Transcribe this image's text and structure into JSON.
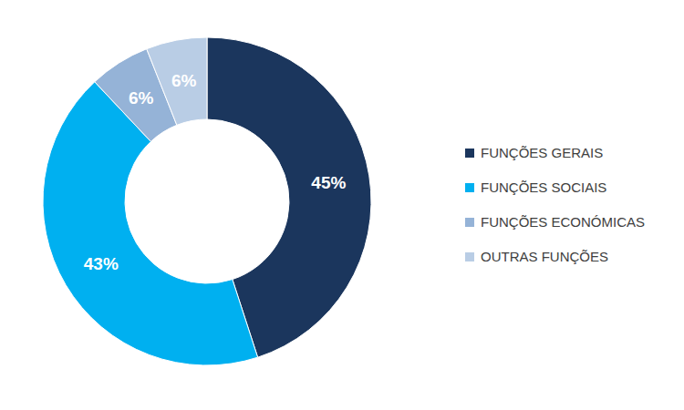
{
  "chart_data": {
    "type": "pie",
    "categories": [
      "FUNÇÕES GERAIS",
      "FUNÇÕES SOCIAIS",
      "FUNÇÕES ECONÓMICAS",
      "OUTRAS FUNÇÕES"
    ],
    "values": [
      45,
      43,
      6,
      6
    ],
    "value_labels": [
      "45%",
      "43%",
      "6%",
      "6%"
    ],
    "colors": [
      "#1b365d",
      "#00b0f0",
      "#95b3d7",
      "#b9cde5"
    ],
    "data_labels": true,
    "legend": "right"
  }
}
